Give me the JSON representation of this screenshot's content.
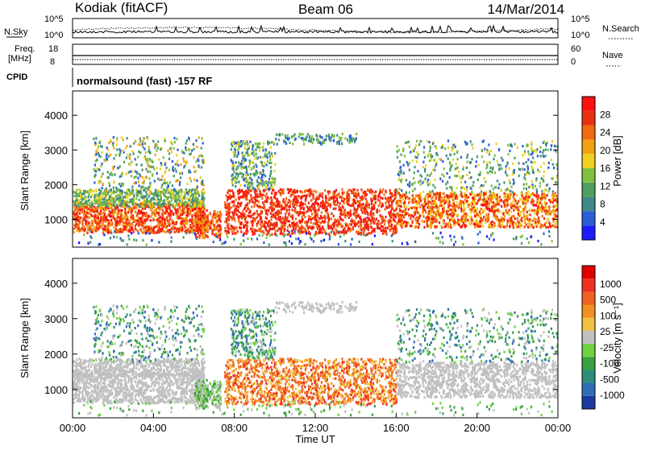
{
  "header": {
    "station": "Kodiak (fitACF)",
    "beam": "Beam 06",
    "date": "14/Mar/2014"
  },
  "strips": {
    "nsky_label": "N.Sky",
    "nsearch_label": "N.Search",
    "freq_label_1": "Freq.",
    "freq_label_2": "[MHz]",
    "nave_label": "Nave",
    "cpid_label": "CPID",
    "nsky_ticks": [
      "10^5",
      "10^0"
    ],
    "nsearch_ticks": [
      "10^5",
      "10^0"
    ],
    "freq_ticks": [
      "18",
      "8"
    ],
    "nave_ticks": [
      "60",
      "0"
    ],
    "cpid_text": "normalsound (fast) -157 RF"
  },
  "chart_data": [
    {
      "type": "heatmap",
      "quantity": "Power",
      "ylabel": "Slant Range [km]",
      "xlabel": "Time UT",
      "ylim": [
        200,
        4700
      ],
      "xlim": [
        "00:00",
        "24:00"
      ],
      "y_ticks": [
        "1000",
        "2000",
        "3000",
        "4000"
      ],
      "x_ticks": [
        "00:00",
        "04:00",
        "08:00",
        "12:00",
        "16:00",
        "20:00",
        "00:00"
      ],
      "colorbar": {
        "label": "Power [dB]",
        "ticks": [
          "4",
          "8",
          "12",
          "16",
          "20",
          "24",
          "28"
        ],
        "colors": [
          "#1c1cff",
          "#2c5ed8",
          "#3f8a88",
          "#4fa060",
          "#7fc040",
          "#f0d020",
          "#f0a010",
          "#f06a10",
          "#e83010",
          "#ff1010"
        ]
      }
    },
    {
      "type": "heatmap",
      "quantity": "Velocity",
      "ylabel": "Slant Range [km]",
      "xlabel": "Time UT",
      "ylim": [
        200,
        4700
      ],
      "xlim": [
        "00:00",
        "24:00"
      ],
      "y_ticks": [
        "1000",
        "2000",
        "3000",
        "4000"
      ],
      "x_ticks": [
        "00:00",
        "04:00",
        "08:00",
        "12:00",
        "16:00",
        "20:00",
        "00:00"
      ],
      "colorbar": {
        "label": "Velocity [m s⁻¹]",
        "ticks": [
          "1000",
          "500",
          "100",
          "25",
          "-25",
          "-100",
          "-500",
          "-1000"
        ],
        "colors": [
          "#1a3aa0",
          "#2f6cb8",
          "#2f8c78",
          "#3aa040",
          "#70d040",
          "#c0c0c0",
          "#f0c040",
          "#f09020",
          "#f06020",
          "#f03020",
          "#e00000"
        ]
      }
    }
  ]
}
